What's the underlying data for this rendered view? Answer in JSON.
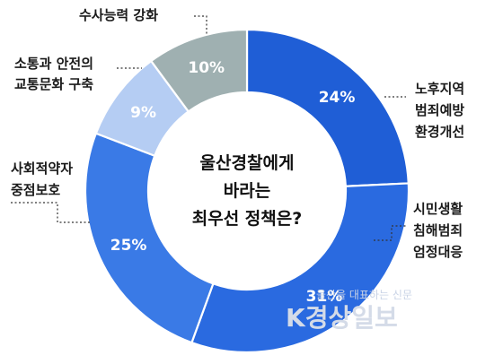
{
  "chart_data": {
    "type": "pie",
    "variant": "donut",
    "title_lines": [
      "울산경찰에게",
      "바라는",
      "최우선 정책은?"
    ],
    "slices": [
      {
        "label_lines": [
          "노후지역",
          "범죄예방",
          "환경개선"
        ],
        "value": 24,
        "display": "24%",
        "color": "#1f5ed6"
      },
      {
        "label_lines": [
          "시민생활",
          "침해범죄",
          "엄정대응"
        ],
        "value": 31,
        "display": "31%",
        "color": "#2a6ae0"
      },
      {
        "label_lines": [
          "사회적약자",
          "중점보호"
        ],
        "value": 25,
        "display": "25%",
        "color": "#3a7ae6"
      },
      {
        "label_lines": [
          "소통과 안전의",
          "교통문화 구축"
        ],
        "value": 9,
        "display": "9%",
        "color": "#b5cdf3"
      },
      {
        "label_lines": [
          "수사능력 강화"
        ],
        "value": 10,
        "display": "10%",
        "color": "#9fb0b1"
      }
    ],
    "legend": "none"
  },
  "watermark": {
    "line1": "울산을 대표하는 신문",
    "logo": "K경상일보"
  }
}
